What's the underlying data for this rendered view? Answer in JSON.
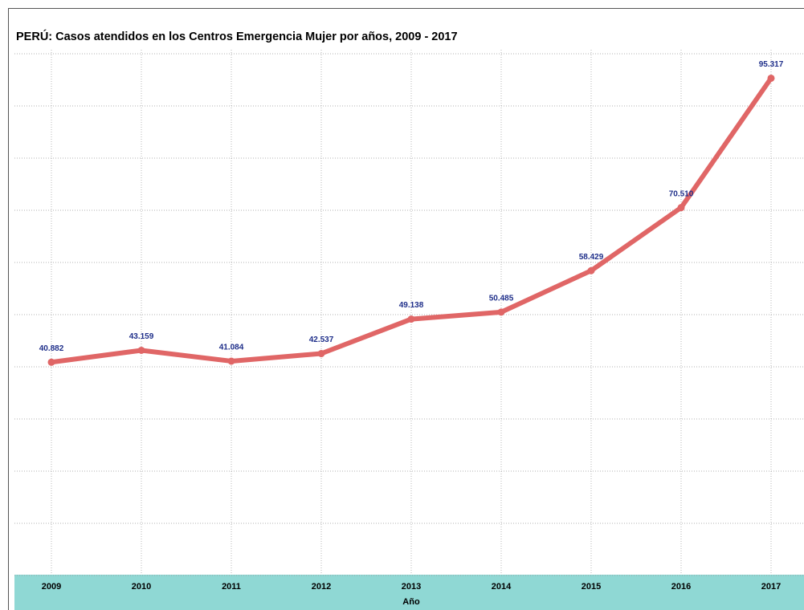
{
  "chart_data": {
    "type": "line",
    "title": "PERÚ: Casos atendidos en los Centros Emergencia Mujer por años, 2009 - 2017",
    "xlabel": "Año",
    "categories": [
      "2009",
      "2010",
      "2011",
      "2012",
      "2013",
      "2014",
      "2015",
      "2016",
      "2017"
    ],
    "series": [
      {
        "name": "Casos",
        "color": "#e06666",
        "values": [
          40882,
          43159,
          41084,
          42537,
          49138,
          50485,
          58429,
          70510,
          95317
        ],
        "value_labels": [
          "40.882",
          "43.159",
          "41.084",
          "42.537",
          "49.138",
          "50.485",
          "58.429",
          "70.510",
          "95.317"
        ]
      }
    ],
    "ylim": [
      0,
      100000
    ],
    "yticks": [
      0,
      10000,
      20000,
      30000,
      40000,
      50000,
      60000,
      70000,
      80000,
      90000,
      100000
    ],
    "grid": true
  }
}
